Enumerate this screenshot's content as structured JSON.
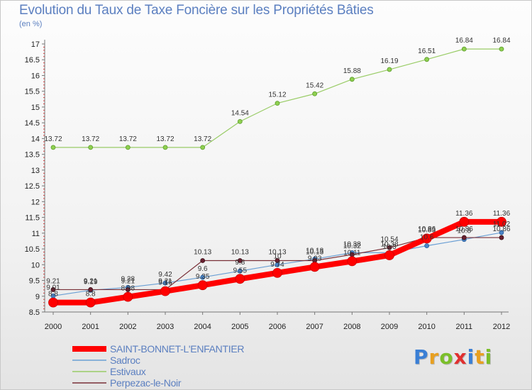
{
  "title": "Evolution du Taux de Taxe Foncière sur les Propriétés Bâties",
  "unit_label": "(en %)",
  "logo": {
    "text": "Proxiti",
    "letter_colors": [
      "#3a7fd5",
      "#e8a020",
      "#7bbf2a",
      "#e03030",
      "#3a7fd5",
      "#e8a020",
      "#7bbf2a"
    ]
  },
  "chart_data": {
    "type": "line",
    "x": [
      2000,
      2001,
      2002,
      2003,
      2004,
      2005,
      2006,
      2007,
      2008,
      2009,
      2010,
      2011,
      2012
    ],
    "ylim": [
      8.5,
      17.0
    ],
    "yticks": [
      8.5,
      9,
      9.5,
      10,
      10.5,
      11,
      11.5,
      12,
      12.5,
      13,
      13.5,
      14,
      14.5,
      15,
      15.5,
      16,
      16.5,
      17
    ],
    "ylabel": "(en %)",
    "grid": false,
    "legend_position": "bottom-left",
    "series": [
      {
        "name": "SAINT-BONNET-L'ENFANTIER",
        "color": "#ff0000",
        "values": [
          8.8,
          8.8,
          8.98,
          9.16,
          9.35,
          9.55,
          9.74,
          9.93,
          10.11,
          10.3,
          10.83,
          11.36,
          11.36
        ],
        "labels": [
          "8.8",
          "8.8",
          "8.98",
          "9.16",
          "9.35",
          "9.55",
          "9.74",
          "9.93",
          "10.11",
          "10.3",
          "10.83",
          "11.36",
          "11.36"
        ]
      },
      {
        "name": "Sadroc",
        "color": "#6a9fd4",
        "values": [
          9.01,
          9.19,
          9.28,
          9.42,
          9.6,
          9.8,
          10.0,
          10.18,
          10.38,
          10.38,
          10.6,
          10.8,
          11.02
        ],
        "labels": [
          "9.01",
          "9.19",
          "9.28",
          "9.42",
          "9.6",
          "9.8",
          "10",
          "10.18",
          "10.38",
          "10.38",
          "10.6",
          "10.8",
          "11.02"
        ]
      },
      {
        "name": "Estivaux",
        "color": "#99cc66",
        "values": [
          13.72,
          13.72,
          13.72,
          13.72,
          13.72,
          14.54,
          15.12,
          15.42,
          15.88,
          16.19,
          16.51,
          16.84,
          16.84
        ],
        "labels": [
          "13.72",
          "13.72",
          "13.72",
          "13.72",
          "13.72",
          "14.54",
          "15.12",
          "15.42",
          "15.88",
          "16.19",
          "16.51",
          "16.84",
          "16.84"
        ]
      },
      {
        "name": "Perpezac-le-Noir",
        "color": "#7a3038",
        "values": [
          9.21,
          9.21,
          9.21,
          9.21,
          10.13,
          10.13,
          10.13,
          10.13,
          10.32,
          10.54,
          10.86,
          10.86,
          10.86
        ],
        "labels": [
          "9.21",
          "9.21",
          "9.21",
          "9.21",
          "10.13",
          "10.13",
          "10.13",
          "10.13",
          "10.32",
          "10.54",
          "10.86",
          "10.86",
          "10.86"
        ]
      }
    ]
  }
}
